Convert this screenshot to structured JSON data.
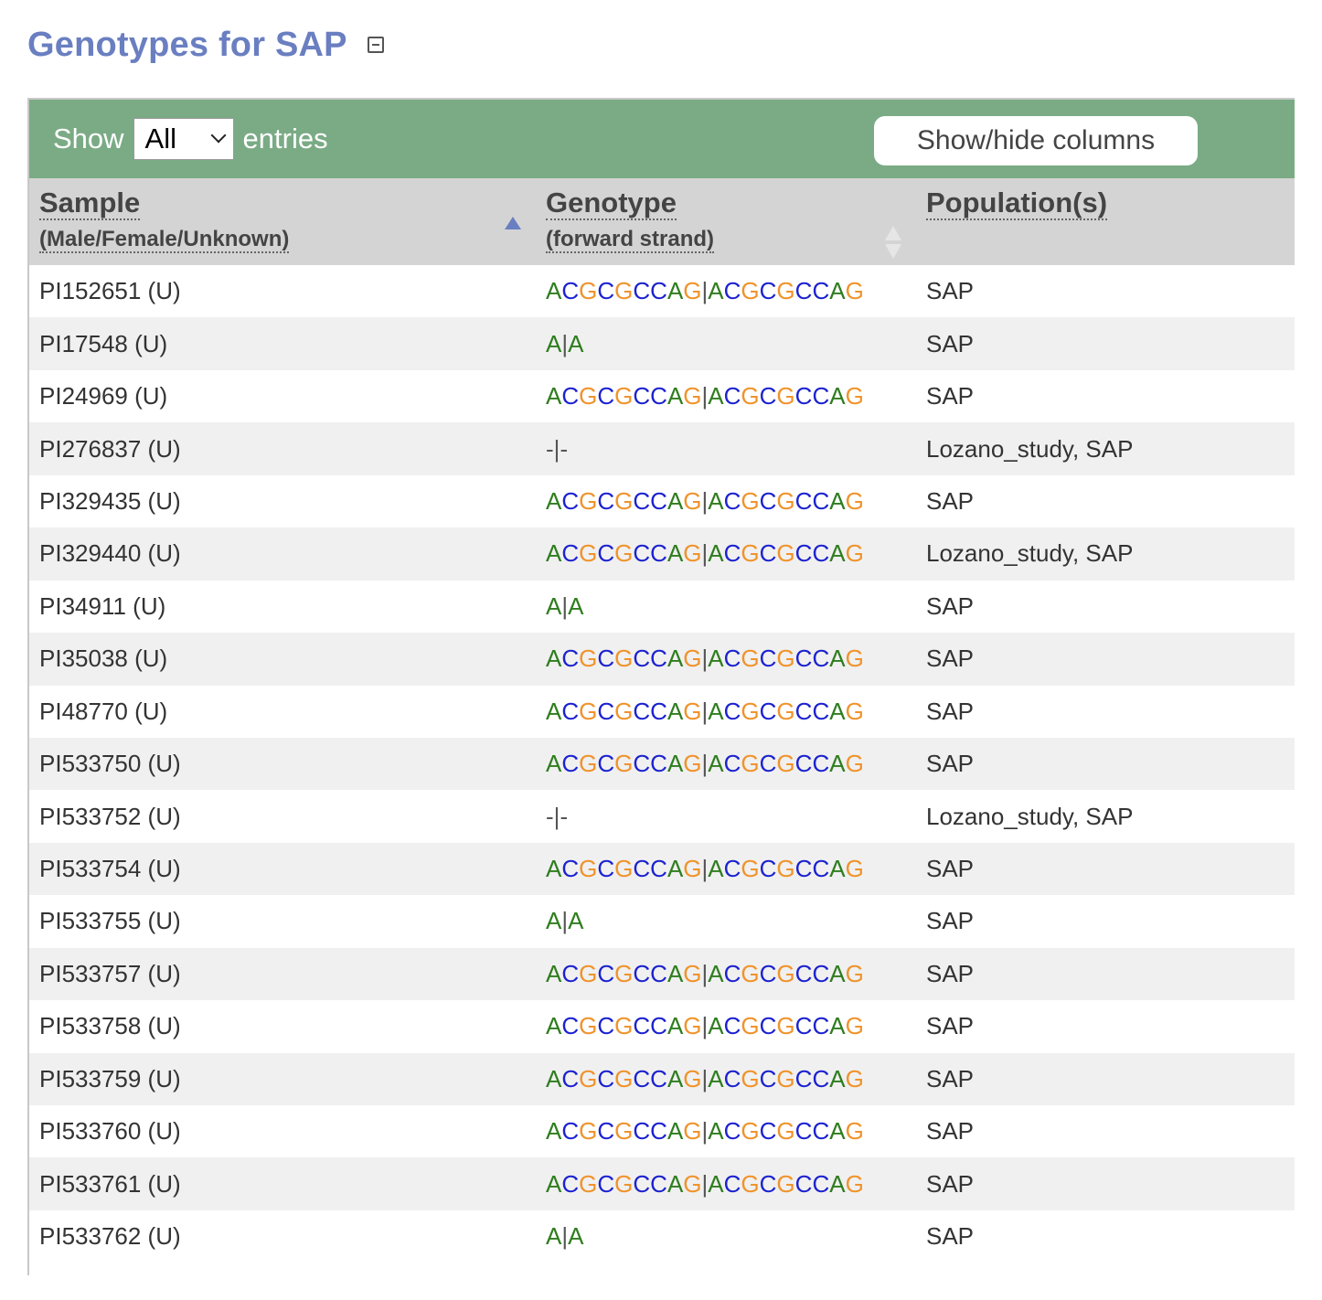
{
  "page": {
    "title": "Genotypes for SAP"
  },
  "toolbar": {
    "show_label": "Show",
    "length_value": "All",
    "entries_label": "entries",
    "colvis_label": "Show/hide columns"
  },
  "columns": {
    "sample": {
      "label": "Sample",
      "sub": "(Male/Female/Unknown)"
    },
    "genotype": {
      "label": "Genotype",
      "sub": "(forward strand)"
    },
    "population": {
      "label": "Population(s)",
      "sub": ""
    }
  },
  "colors": {
    "A": "#2e7d1e",
    "C": "#1c22cf",
    "G": "#f0932b",
    "T": "#c0303a",
    "toolbar_bg": "#7aab85",
    "title": "#6a7fc1"
  },
  "rows": [
    {
      "sample": "PI152651 (U)",
      "genotype": "ACGCGCCAG|ACGCGCCAG",
      "population": "SAP"
    },
    {
      "sample": "PI17548 (U)",
      "genotype": "A|A",
      "population": "SAP"
    },
    {
      "sample": "PI24969 (U)",
      "genotype": "ACGCGCCAG|ACGCGCCAG",
      "population": "SAP"
    },
    {
      "sample": "PI276837 (U)",
      "genotype": "-|-",
      "population": "Lozano_study, SAP"
    },
    {
      "sample": "PI329435 (U)",
      "genotype": "ACGCGCCAG|ACGCGCCAG",
      "population": "SAP"
    },
    {
      "sample": "PI329440 (U)",
      "genotype": "ACGCGCCAG|ACGCGCCAG",
      "population": "Lozano_study, SAP"
    },
    {
      "sample": "PI34911 (U)",
      "genotype": "A|A",
      "population": "SAP"
    },
    {
      "sample": "PI35038 (U)",
      "genotype": "ACGCGCCAG|ACGCGCCAG",
      "population": "SAP"
    },
    {
      "sample": "PI48770 (U)",
      "genotype": "ACGCGCCAG|ACGCGCCAG",
      "population": "SAP"
    },
    {
      "sample": "PI533750 (U)",
      "genotype": "ACGCGCCAG|ACGCGCCAG",
      "population": "SAP"
    },
    {
      "sample": "PI533752 (U)",
      "genotype": "-|-",
      "population": "Lozano_study, SAP"
    },
    {
      "sample": "PI533754 (U)",
      "genotype": "ACGCGCCAG|ACGCGCCAG",
      "population": "SAP"
    },
    {
      "sample": "PI533755 (U)",
      "genotype": "A|A",
      "population": "SAP"
    },
    {
      "sample": "PI533757 (U)",
      "genotype": "ACGCGCCAG|ACGCGCCAG",
      "population": "SAP"
    },
    {
      "sample": "PI533758 (U)",
      "genotype": "ACGCGCCAG|ACGCGCCAG",
      "population": "SAP"
    },
    {
      "sample": "PI533759 (U)",
      "genotype": "ACGCGCCAG|ACGCGCCAG",
      "population": "SAP"
    },
    {
      "sample": "PI533760 (U)",
      "genotype": "ACGCGCCAG|ACGCGCCAG",
      "population": "SAP"
    },
    {
      "sample": "PI533761 (U)",
      "genotype": "ACGCGCCAG|ACGCGCCAG",
      "population": "SAP"
    },
    {
      "sample": "PI533762 (U)",
      "genotype": "A|A",
      "population": "SAP"
    }
  ]
}
